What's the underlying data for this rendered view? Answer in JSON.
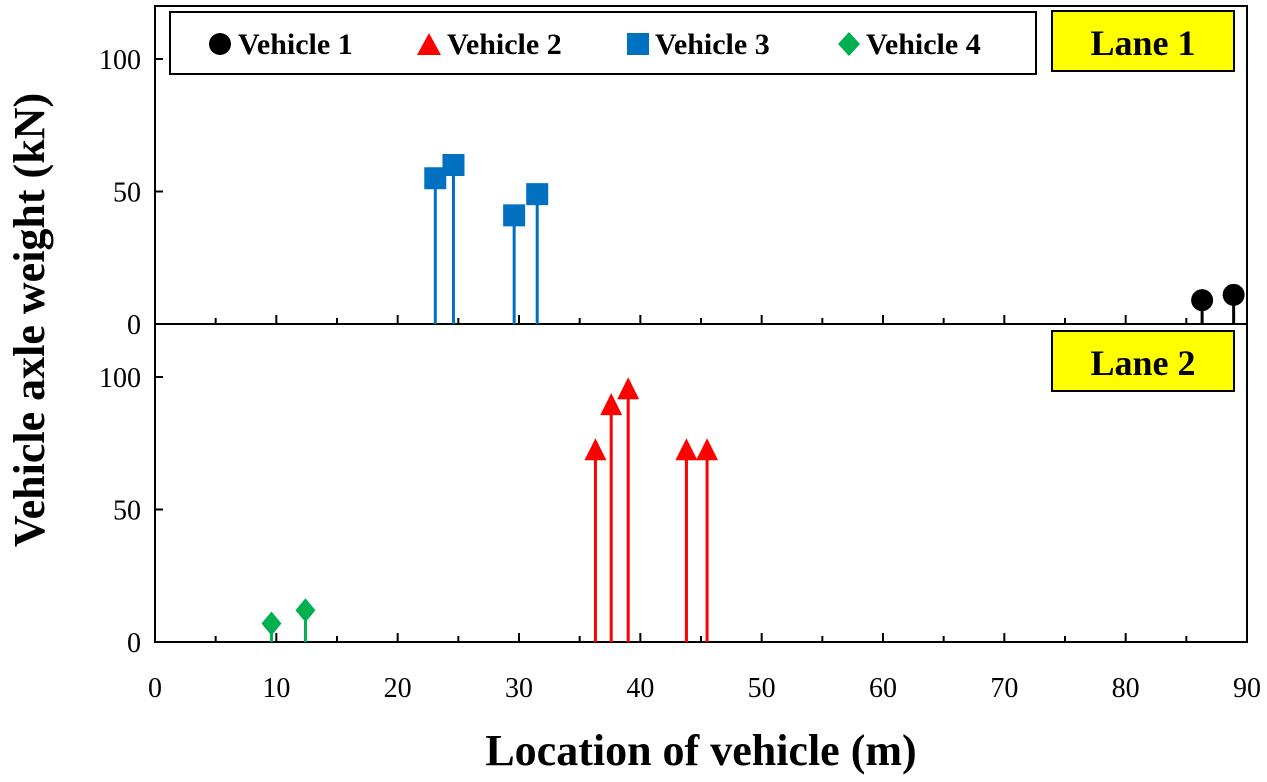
{
  "colors": {
    "vehicle_1": "#000000",
    "vehicle_2": "#ff0000",
    "vehicle_3": "#0070c0",
    "vehicle_4": "#00b050",
    "lane_label_bg": "#ffff00"
  },
  "chart_data": [
    {
      "type": "scatter",
      "panel": "Lane 1",
      "lane_label": "Lane 1",
      "xlabel": "Location of vehicle (m)",
      "ylabel": "Vehicle axle weight (kN)",
      "xlim": [
        0,
        90
      ],
      "ylim": [
        0,
        120
      ],
      "x_ticks": [
        "0",
        "10",
        "20",
        "30",
        "40",
        "50",
        "60",
        "70",
        "80",
        "90"
      ],
      "y_ticks": [
        "0",
        "50",
        "100"
      ],
      "legend": {
        "placement": "top",
        "entries": [
          {
            "name": "Vehicle 1",
            "marker": "circle",
            "color": "#000000"
          },
          {
            "name": "Vehicle 2",
            "marker": "triangle",
            "color": "#ff0000"
          },
          {
            "name": "Vehicle 3",
            "marker": "square",
            "color": "#0070c0"
          },
          {
            "name": "Vehicle 4",
            "marker": "diamond",
            "color": "#00b050"
          }
        ]
      },
      "series": [
        {
          "name": "Vehicle 1",
          "marker": "circle",
          "color": "#000000",
          "x": [
            86.3,
            88.9
          ],
          "y": [
            9,
            11
          ]
        },
        {
          "name": "Vehicle 3",
          "marker": "square",
          "color": "#0070c0",
          "x": [
            23.1,
            24.6,
            29.6,
            31.5
          ],
          "y": [
            55,
            60,
            41,
            49
          ]
        }
      ]
    },
    {
      "type": "scatter",
      "panel": "Lane 2",
      "lane_label": "Lane 2",
      "xlim": [
        0,
        90
      ],
      "ylim": [
        0,
        120
      ],
      "y_ticks": [
        "0",
        "50",
        "100"
      ],
      "series": [
        {
          "name": "Vehicle 2",
          "marker": "triangle",
          "color": "#ff0000",
          "x": [
            36.3,
            37.6,
            39.0,
            43.8,
            45.5
          ],
          "y": [
            72,
            89,
            95,
            72,
            72
          ]
        },
        {
          "name": "Vehicle 4",
          "marker": "diamond",
          "color": "#00b050",
          "x": [
            9.6,
            12.4
          ],
          "y": [
            7,
            12
          ]
        }
      ]
    }
  ]
}
